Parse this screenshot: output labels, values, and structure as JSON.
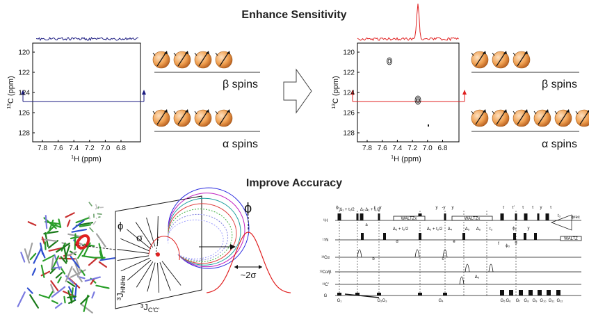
{
  "headings": {
    "top": "Enhance Sensitivity",
    "bottom": "Improve Accuracy"
  },
  "spectra": {
    "y_ticks": [
      "120",
      "122",
      "124",
      "126",
      "128"
    ],
    "x_ticks": [
      "7.8",
      "7.6",
      "7.4",
      "7.2",
      "7.0",
      "6.8"
    ],
    "y_label_sup": "13",
    "y_label_main": "C (ppm)",
    "x_label_sup": "1",
    "x_label_main": "H (ppm)",
    "left_color": "#1a1a80",
    "right_color": "#e02020"
  },
  "spins": {
    "beta_label": "β spins",
    "alpha_label": "α spins",
    "sphere_color": "#f0a050"
  },
  "accuracy": {
    "phi": "ϕ",
    "sigma": "σ",
    "coupling_hnha": "³J",
    "coupling_hnha_sub": "HNHα",
    "coupling_cc": "³J",
    "coupling_cc_sub": "C′C′",
    "width_label": "~2σ"
  },
  "pulse_sequence": {
    "channels": [
      "¹H",
      "¹⁵N",
      "¹³Cα",
      "¹³Cα/β",
      "¹³C′",
      "G"
    ],
    "boxes": [
      "WALTZx",
      "WALTZx",
      "WALTZ"
    ],
    "delays": [
      "Δ₁ + t₁/2",
      "Δ₂",
      "Δ₁ + t₁/2",
      "Δ₃ + t₂/2",
      "Δ₃ + t₂/2",
      "Δ₄",
      "Δ₅",
      "Δ₆",
      "t₃",
      "Δ₆"
    ],
    "phases": [
      "ϕ₁",
      "ε",
      "y",
      "y",
      "-y",
      "y",
      "τ",
      "τ′",
      "τ",
      "τ",
      "y",
      "τ",
      "ϕ₂",
      "ϕ₃",
      "y",
      "t₃",
      "ϕrec"
    ],
    "markers": [
      "a",
      "b",
      "c",
      "d",
      "e",
      "f",
      "g"
    ],
    "gradients": [
      "G₁",
      "G₂",
      "G₃",
      "G₄",
      "G₅",
      "G₆",
      "G₇",
      "G₈",
      "G₉",
      "G₁₀",
      "G₁₁",
      "G₁₂"
    ]
  }
}
